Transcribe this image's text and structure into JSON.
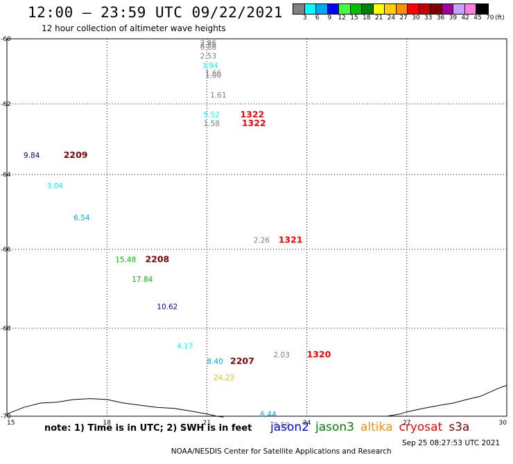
{
  "header": {
    "title": "12:00 — 23:59 UTC 09/22/2021",
    "subtitle": "12 hour collection of altimeter wave heights"
  },
  "color_scale": {
    "labels": [
      "3",
      "6",
      "9",
      "12",
      "15",
      "18",
      "21",
      "24",
      "27",
      "30",
      "33",
      "36",
      "39",
      "42",
      "45",
      "70"
    ],
    "unit": "(ft)",
    "colors": [
      "#808080",
      "#00ffff",
      "#00a8f0",
      "#0000ff",
      "#40ff40",
      "#00c000",
      "#008000",
      "#ffff00",
      "#ffd000",
      "#ff9000",
      "#ff0000",
      "#c80000",
      "#800000",
      "#a000a0",
      "#c8a0ff",
      "#ff80e0",
      "#000000"
    ]
  },
  "map": {
    "lat_range": [
      -70,
      -60
    ],
    "lon_range": [
      15,
      30
    ],
    "lat_ticks": [
      "-60",
      "-62",
      "-64",
      "-66",
      "-68",
      "-70"
    ],
    "lon_ticks": [
      "15",
      "18",
      "21",
      "24",
      "27",
      "30"
    ],
    "lat_tick_values": [
      -60,
      -62,
      -64,
      -66,
      -68,
      -70
    ],
    "lon_tick_values": [
      15,
      18,
      21,
      24,
      27,
      30
    ],
    "wave_heights": [
      {
        "lon": 20.8,
        "lat": -60.12,
        "text": "2.96",
        "color": "#808080"
      },
      {
        "lon": 20.8,
        "lat": -60.18,
        "text": "2.56",
        "color": "#808080"
      },
      {
        "lon": 20.8,
        "lat": -60.25,
        "text": "0.86",
        "color": "#808080"
      },
      {
        "lon": 20.8,
        "lat": -60.52,
        "text": "2.53",
        "color": "#808080"
      },
      {
        "lon": 20.85,
        "lat": -60.82,
        "text": "3.94",
        "color": "#00ffff"
      },
      {
        "lon": 20.95,
        "lat": -61.05,
        "text": "1.66",
        "color": "#808080"
      },
      {
        "lon": 20.95,
        "lat": -61.12,
        "text": "1.00",
        "color": "#808080"
      },
      {
        "lon": 21.1,
        "lat": -61.72,
        "text": "1.61",
        "color": "#808080"
      },
      {
        "lon": 20.9,
        "lat": -62.3,
        "text": "5.52",
        "color": "#00ffff"
      },
      {
        "lon": 20.9,
        "lat": -62.55,
        "text": "1.58",
        "color": "#808080"
      },
      {
        "lon": 15.5,
        "lat": -63.45,
        "text": "9.84",
        "color": "#000080"
      },
      {
        "lon": 16.2,
        "lat": -64.3,
        "text": "3.04",
        "color": "#00ffff"
      },
      {
        "lon": 17.0,
        "lat": -65.15,
        "text": "6.54",
        "color": "#00a8f0"
      },
      {
        "lon": 22.4,
        "lat": -65.75,
        "text": "2.26",
        "color": "#808080"
      },
      {
        "lon": 18.25,
        "lat": -66.25,
        "text": "15.48",
        "color": "#00c000"
      },
      {
        "lon": 18.75,
        "lat": -66.75,
        "text": "17.84",
        "color": "#00c000"
      },
      {
        "lon": 19.5,
        "lat": -67.45,
        "text": "10.62",
        "color": "#0000c0"
      },
      {
        "lon": 20.1,
        "lat": -68.4,
        "text": "4.17",
        "color": "#00ffff"
      },
      {
        "lon": 21.0,
        "lat": -68.75,
        "text": "8.40",
        "color": "#00a8f0"
      },
      {
        "lon": 23.0,
        "lat": -68.6,
        "text": "2.03",
        "color": "#808080"
      },
      {
        "lon": 21.2,
        "lat": -69.12,
        "text": "24.23",
        "color": "#ffc000"
      },
      {
        "lon": 22.6,
        "lat": -69.95,
        "text": "6.44",
        "color": "#00a8f0"
      },
      {
        "lon": 23.0,
        "lat": -70.2,
        "text": "0.59",
        "color": "#808080"
      }
    ],
    "pass_labels": [
      {
        "lon": 22.0,
        "lat": -62.3,
        "text": "1322",
        "color": "#ff0000"
      },
      {
        "lon": 22.05,
        "lat": -62.55,
        "text": "1322",
        "color": "#ff0000"
      },
      {
        "lon": 16.7,
        "lat": -63.45,
        "text": "2209",
        "color": "#800000"
      },
      {
        "lon": 23.15,
        "lat": -65.75,
        "text": "1321",
        "color": "#ff0000"
      },
      {
        "lon": 19.15,
        "lat": -66.25,
        "text": "2208",
        "color": "#800000"
      },
      {
        "lon": 21.7,
        "lat": -68.75,
        "text": "2207",
        "color": "#800000"
      },
      {
        "lon": 24.0,
        "lat": -68.6,
        "text": "1320",
        "color": "#ff0000"
      }
    ]
  },
  "note": "note: 1) Time is in UTC; 2) SWH is in feet",
  "satellites": [
    {
      "name": "jason2",
      "color": "#0000ff"
    },
    {
      "name": "jason3",
      "color": "#008000"
    },
    {
      "name": "altika",
      "color": "#ff9000"
    },
    {
      "name": "cryosat",
      "color": "#ff0000"
    },
    {
      "name": "s3a",
      "color": "#800000"
    }
  ],
  "footer": {
    "credit": "NOAA/NESDIS Center for Satellite Applications and Research",
    "timestamp": "Sep 25 08:27:53 UTC 2021"
  }
}
